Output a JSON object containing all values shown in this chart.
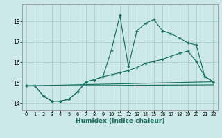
{
  "xlabel": "Humidex (Indice chaleur)",
  "background_color": "#cce8e8",
  "grid_color": "#aacfcf",
  "line_color": "#1a7060",
  "xlim": [
    -0.5,
    22.5
  ],
  "ylim": [
    13.65,
    18.85
  ],
  "xticks": [
    0,
    1,
    2,
    3,
    4,
    5,
    6,
    7,
    8,
    9,
    10,
    11,
    12,
    13,
    14,
    15,
    16,
    17,
    18,
    19,
    20,
    21,
    22
  ],
  "yticks": [
    14,
    15,
    16,
    17,
    18
  ],
  "line1_x": [
    0,
    1,
    2,
    3,
    4,
    5,
    6,
    7,
    8,
    9,
    10,
    11,
    12,
    13,
    14,
    15,
    16,
    17,
    18,
    19,
    20,
    21,
    22
  ],
  "line1_y": [
    14.85,
    14.85,
    14.35,
    14.1,
    14.1,
    14.2,
    14.55,
    15.05,
    15.15,
    15.3,
    16.6,
    18.3,
    15.8,
    17.55,
    17.9,
    18.1,
    17.55,
    17.4,
    17.2,
    16.95,
    16.85,
    15.3,
    15.05
  ],
  "line2_x": [
    0,
    1,
    2,
    3,
    4,
    5,
    6,
    7,
    8,
    9,
    10,
    11,
    12,
    13,
    14,
    15,
    16,
    17,
    18,
    19,
    20,
    21,
    22
  ],
  "line2_y": [
    14.85,
    14.85,
    14.35,
    14.1,
    14.1,
    14.2,
    14.55,
    15.05,
    15.15,
    15.3,
    15.4,
    15.5,
    15.6,
    15.75,
    15.95,
    16.05,
    16.15,
    16.3,
    16.45,
    16.55,
    16.05,
    15.3,
    15.05
  ],
  "line3_x": [
    0,
    22
  ],
  "line3_y": [
    14.85,
    15.05
  ],
  "line4_x": [
    0,
    22
  ],
  "line4_y": [
    14.85,
    14.9
  ]
}
